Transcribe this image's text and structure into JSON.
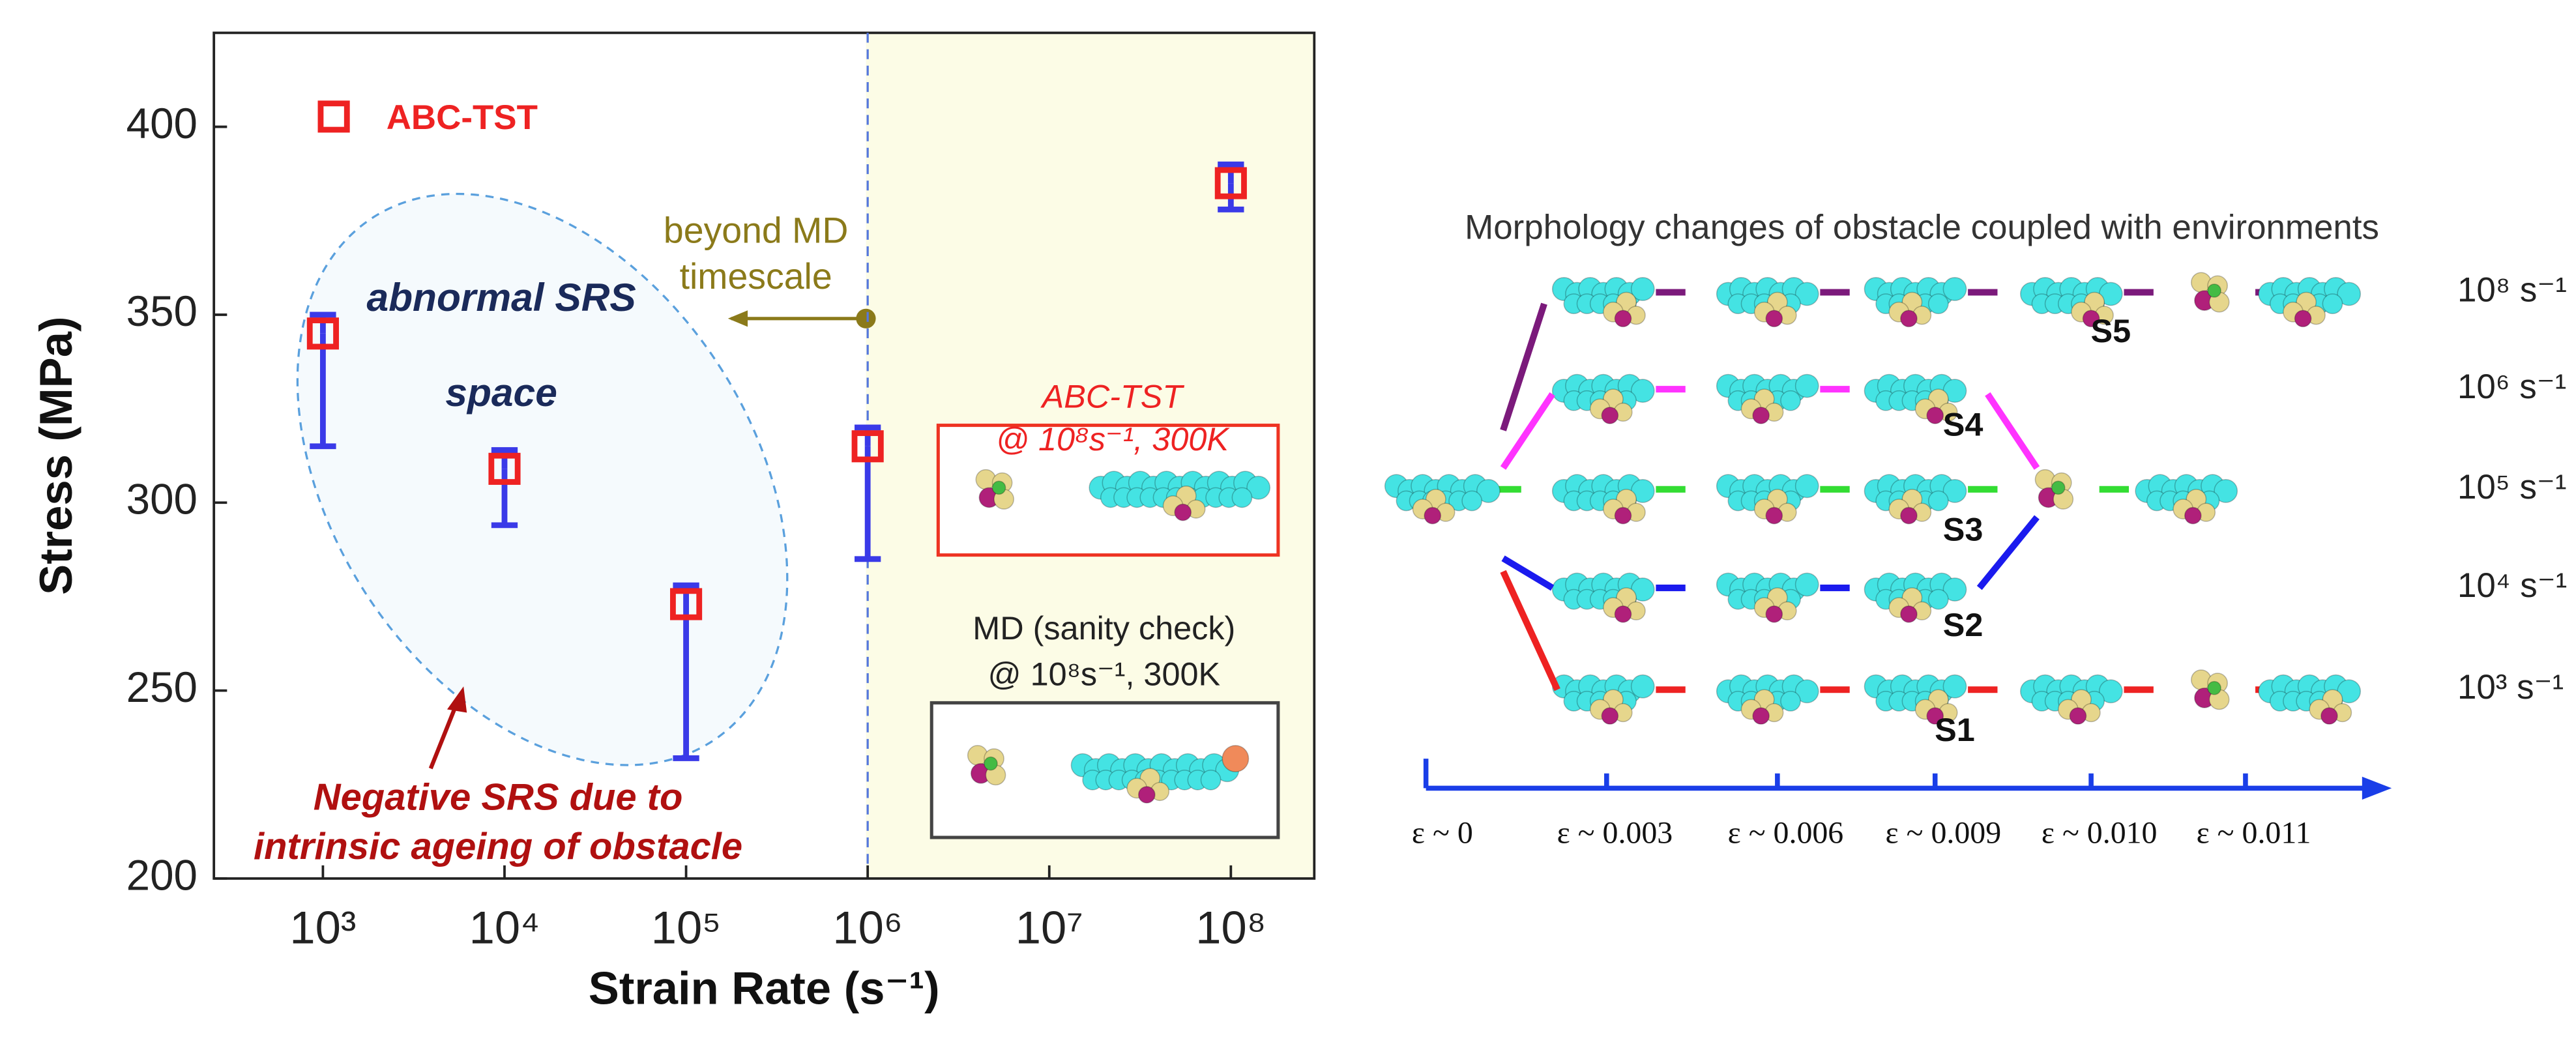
{
  "chart_data": {
    "type": "scatter",
    "xlabel": "Strain Rate (s⁻¹)",
    "ylabel": "Stress (MPa)",
    "x": [
      1000,
      10000,
      100000,
      1000000,
      100000000
    ],
    "series": [
      {
        "name": "ABC-TST",
        "color": "#ee2222",
        "errcolor": "#3a3ae8",
        "values": [
          345,
          309,
          273,
          315,
          385
        ],
        "yerr_lower": [
          30,
          15,
          41,
          30,
          7
        ],
        "yerr_upper": [
          5,
          5,
          5,
          5,
          5
        ]
      }
    ],
    "xscale": "log",
    "xlim": [
      251,
      288000000
    ],
    "xticks": [
      {
        "value": 1000,
        "label": "10³"
      },
      {
        "value": 10000,
        "label": "10⁴"
      },
      {
        "value": 100000,
        "label": "10⁵"
      },
      {
        "value": 1000000,
        "label": "10⁶"
      },
      {
        "value": 10000000,
        "label": "10⁷"
      },
      {
        "value": 100000000,
        "label": "10⁸"
      }
    ],
    "ylim": [
      200,
      425
    ],
    "yticks": [
      200,
      250,
      300,
      350,
      400
    ],
    "legend": "upper left",
    "boundary_x": 1000000,
    "annotations": {
      "beyond_md": [
        "beyond MD",
        "timescale"
      ],
      "abnormal": [
        "abnormal SRS",
        "space"
      ],
      "negative": [
        "Negative SRS due to",
        "intrinsic ageing of obstacle"
      ],
      "abc_inset": [
        "ABC-TST",
        "@ 10⁸s⁻¹, 300K"
      ],
      "md_inset": [
        "MD (sanity check)",
        "@ 10⁸s⁻¹, 300K"
      ]
    }
  },
  "diagram": {
    "title": "Morphology changes of obstacle coupled with environments",
    "rates": [
      "10⁸ s⁻¹",
      "10⁶ s⁻¹",
      "10⁵ s⁻¹",
      "10⁴ s⁻¹",
      "10³ s⁻¹"
    ],
    "states": [
      "S5",
      "S4",
      "S3",
      "S2",
      "S1"
    ],
    "strain_labels": [
      "ε ~ 0",
      "ε ~ 0.003",
      "ε ~ 0.006",
      "ε ~ 0.009",
      "ε ~ 0.010",
      "ε ~ 0.011"
    ]
  }
}
